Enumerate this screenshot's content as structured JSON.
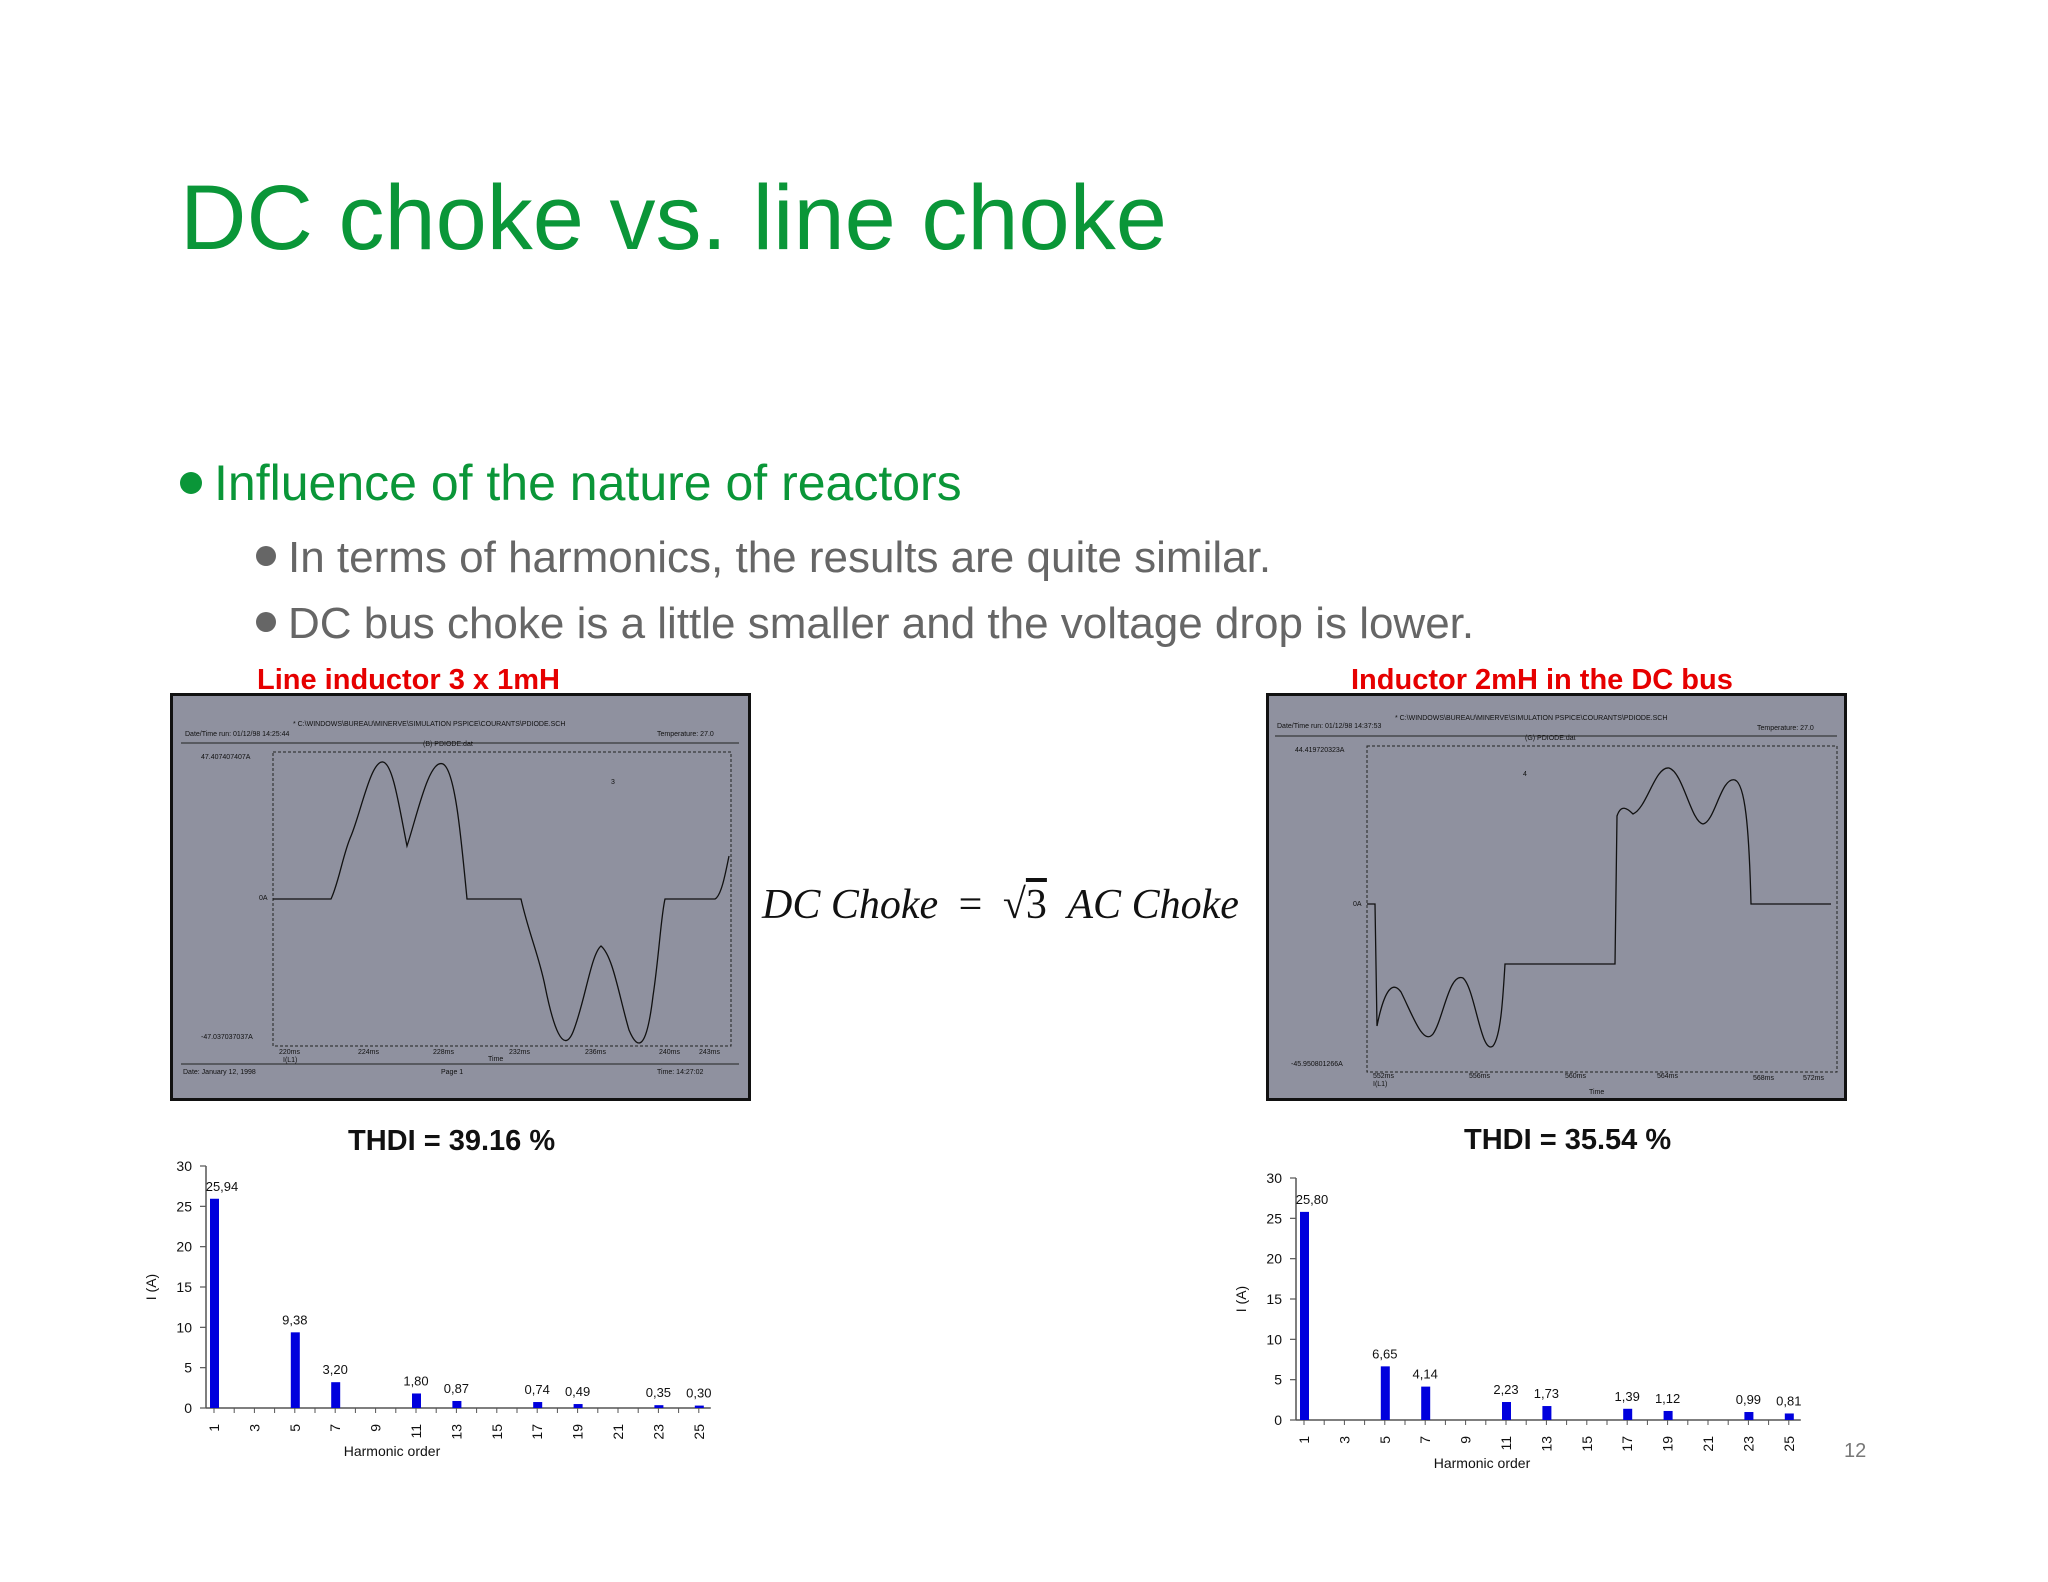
{
  "slide": {
    "title": "DC choke vs. line choke",
    "bullet_main": "Influence of the nature of reactors",
    "bullets_sub": [
      "In terms of harmonics, the results are quite similar.",
      "DC bus choke is a little smaller and the voltage drop is lower."
    ],
    "page_number": "12",
    "colors": {
      "title_green": "#0a9638",
      "label_red": "#e60000",
      "bar_blue": "#0000dd",
      "text_gray": "#666666"
    }
  },
  "formula": {
    "left": "DC Choke",
    "equals": "=",
    "radicand": "3",
    "right": "AC Choke"
  },
  "left_panel": {
    "label": "Line inductor 3 x 1mH",
    "thdi": "THDI = 39.16 %",
    "scope": {
      "path": "* C:\\WINDOWS\\BUREAU\\MINERVE\\SIMULATION PSPICE\\COURANTS\\PDIODE.SCH",
      "date_run": "Date/Time run: 01/12/98 14:25:44",
      "temperature": "Temperature: 27.0",
      "file": "(B) PDIODE.dat",
      "ymax": "47.407407407A",
      "zero": "0A",
      "ymin": "-47.037037037A",
      "marker": "3",
      "x_ticks": [
        "220ms",
        "224ms",
        "228ms",
        "232ms",
        "236ms",
        "240ms",
        "243ms"
      ],
      "trace": "I(L1)",
      "x_axis": "Time",
      "footer_date": "Date: January 12, 1998",
      "footer_page": "Page 1",
      "footer_time": "Time: 14:27:02"
    }
  },
  "right_panel": {
    "label": "Inductor 2mH in the DC bus",
    "thdi": "THDI = 35.54 %",
    "scope": {
      "path": "* C:\\WINDOWS\\BUREAU\\MINERVE\\SIMULATION PSPICE\\COURANTS\\PDIODE.SCH",
      "date_run": "Date/Time run: 01/12/98 14:37:53",
      "temperature": "Temperature: 27.0",
      "file": "(G) PDIODE.dat",
      "ymax": "44.419720323A",
      "zero": "0A",
      "ymin": "-45.950801266A",
      "marker": "4",
      "x_ticks": [
        "552ms",
        "556ms",
        "560ms",
        "564ms",
        "568ms",
        "572ms"
      ],
      "trace": "I(L1)",
      "x_axis": "Time"
    }
  },
  "chart_data": [
    {
      "type": "bar",
      "title": "",
      "xlabel": "Harmonic order",
      "ylabel": "I (A)",
      "ylim": [
        0,
        30
      ],
      "yticks": [
        0,
        5,
        10,
        15,
        20,
        25,
        30
      ],
      "xticks": [
        "1",
        "3",
        "5",
        "7",
        "9",
        "11",
        "13",
        "15",
        "17",
        "19",
        "21",
        "23",
        "25"
      ],
      "categories": [
        1,
        3,
        5,
        7,
        9,
        11,
        13,
        15,
        17,
        19,
        21,
        23,
        25
      ],
      "bars": [
        {
          "x": 1,
          "value": 25.94,
          "label": "25,94"
        },
        {
          "x": 5,
          "value": 9.38,
          "label": "9,38"
        },
        {
          "x": 7,
          "value": 3.2,
          "label": "3,20"
        },
        {
          "x": 11,
          "value": 1.8,
          "label": "1,80"
        },
        {
          "x": 13,
          "value": 0.87,
          "label": "0,87"
        },
        {
          "x": 17,
          "value": 0.74,
          "label": "0,74"
        },
        {
          "x": 19,
          "value": 0.49,
          "label": "0,49"
        },
        {
          "x": 23,
          "value": 0.35,
          "label": "0,35"
        },
        {
          "x": 25,
          "value": 0.3,
          "label": "0,30"
        }
      ],
      "bar_color": "#0000dd",
      "grid": false
    },
    {
      "type": "bar",
      "title": "",
      "xlabel": "Harmonic order",
      "ylabel": "I (A)",
      "ylim": [
        0,
        30
      ],
      "yticks": [
        0,
        5,
        10,
        15,
        20,
        25,
        30
      ],
      "xticks": [
        "1",
        "3",
        "5",
        "7",
        "9",
        "11",
        "13",
        "15",
        "17",
        "19",
        "21",
        "23",
        "25"
      ],
      "categories": [
        1,
        3,
        5,
        7,
        9,
        11,
        13,
        15,
        17,
        19,
        21,
        23,
        25
      ],
      "bars": [
        {
          "x": 1,
          "value": 25.8,
          "label": "25,80"
        },
        {
          "x": 5,
          "value": 6.65,
          "label": "6,65"
        },
        {
          "x": 7,
          "value": 4.14,
          "label": "4,14"
        },
        {
          "x": 11,
          "value": 2.23,
          "label": "2,23"
        },
        {
          "x": 13,
          "value": 1.73,
          "label": "1,73"
        },
        {
          "x": 17,
          "value": 1.39,
          "label": "1,39"
        },
        {
          "x": 19,
          "value": 1.12,
          "label": "1,12"
        },
        {
          "x": 23,
          "value": 0.99,
          "label": "0,99"
        },
        {
          "x": 25,
          "value": 0.81,
          "label": "0,81"
        }
      ],
      "bar_color": "#0000dd",
      "grid": false
    }
  ]
}
